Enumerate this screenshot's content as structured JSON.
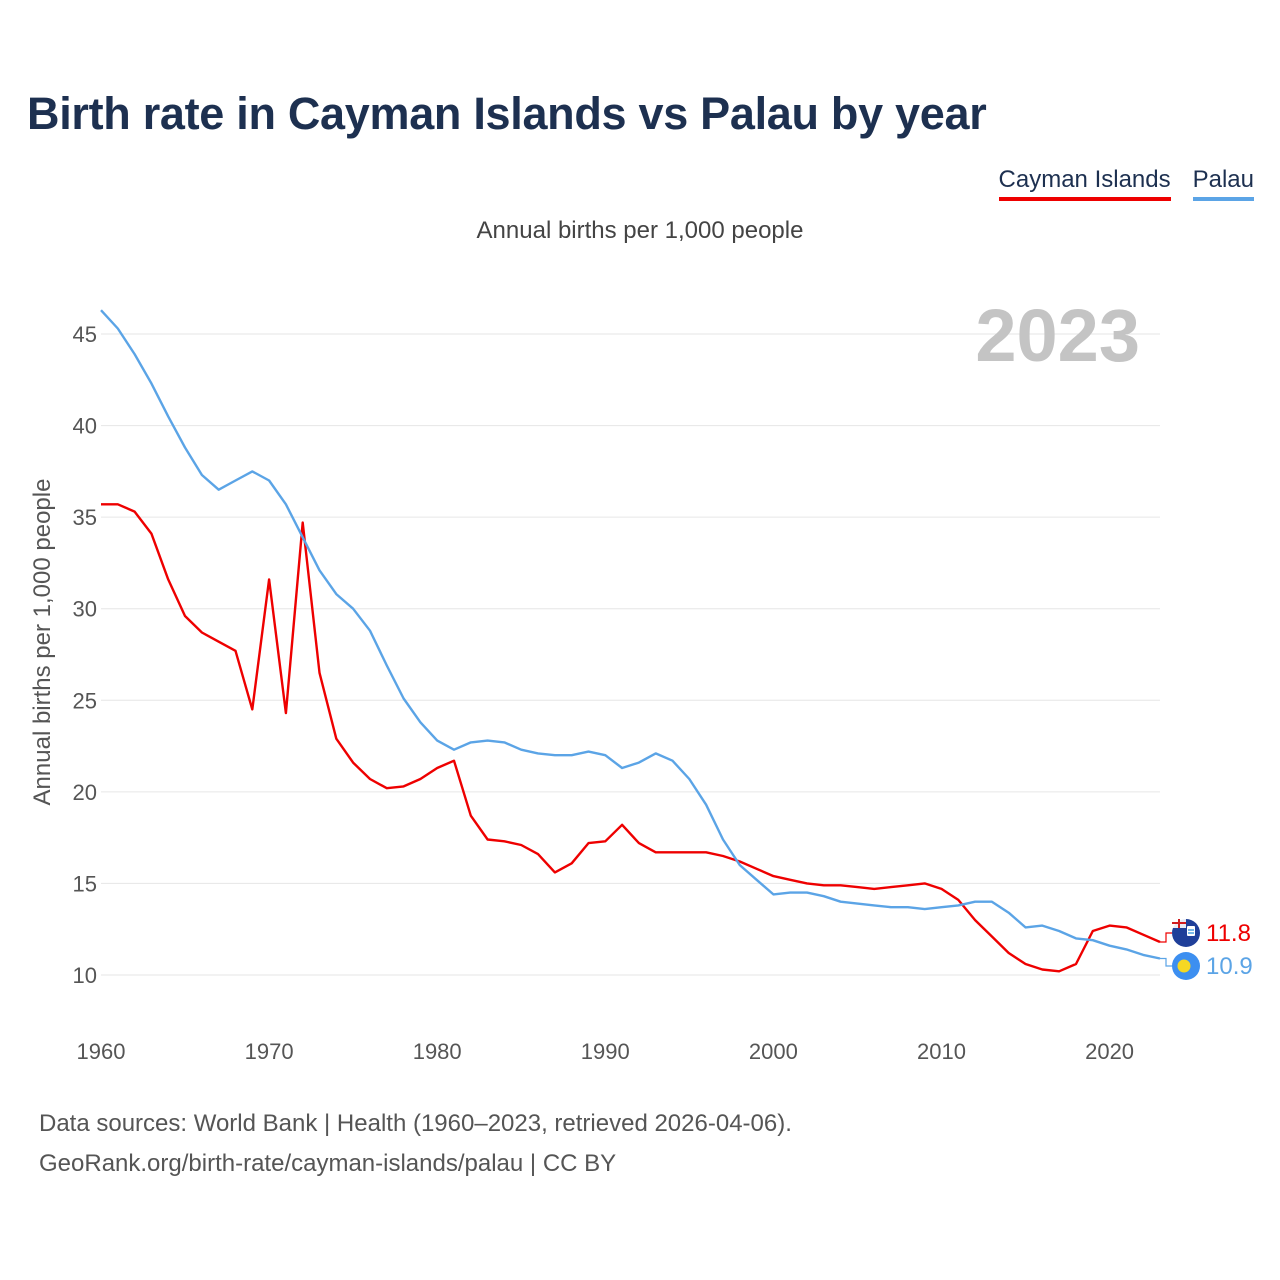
{
  "chart_data": {
    "type": "line",
    "title": "Birth rate in Cayman Islands vs Palau by year",
    "subtitle": "Annual births per 1,000 people",
    "ylabel": "Annual births per 1,000 people",
    "xlabel": "",
    "year_label": "2023",
    "xlim": [
      1960,
      2023
    ],
    "ylim": [
      7.5,
      47.5
    ],
    "x_ticks": [
      1960,
      1970,
      1980,
      1990,
      2000,
      2010,
      2020
    ],
    "y_ticks": [
      10,
      15,
      20,
      25,
      30,
      35,
      40,
      45
    ],
    "x": [
      1960,
      1961,
      1962,
      1963,
      1964,
      1965,
      1966,
      1967,
      1968,
      1969,
      1970,
      1971,
      1972,
      1973,
      1974,
      1975,
      1976,
      1977,
      1978,
      1979,
      1980,
      1981,
      1982,
      1983,
      1984,
      1985,
      1986,
      1987,
      1988,
      1989,
      1990,
      1991,
      1992,
      1993,
      1994,
      1995,
      1996,
      1997,
      1998,
      1999,
      2000,
      2001,
      2002,
      2003,
      2004,
      2005,
      2006,
      2007,
      2008,
      2009,
      2010,
      2011,
      2012,
      2013,
      2014,
      2015,
      2016,
      2017,
      2018,
      2019,
      2020,
      2021,
      2022,
      2023
    ],
    "series": [
      {
        "name": "Cayman Islands",
        "color": "#ee0000",
        "end_label": "11.8",
        "values": [
          35.7,
          35.7,
          35.3,
          34.1,
          31.6,
          29.6,
          28.7,
          28.2,
          27.7,
          24.5,
          31.6,
          24.3,
          34.7,
          26.5,
          22.9,
          21.6,
          20.7,
          20.2,
          20.3,
          20.7,
          21.3,
          21.7,
          18.7,
          17.4,
          17.3,
          17.1,
          16.6,
          15.6,
          16.1,
          17.2,
          17.3,
          18.2,
          17.2,
          16.7,
          16.7,
          16.7,
          16.7,
          16.5,
          16.2,
          15.8,
          15.4,
          15.2,
          15.0,
          14.9,
          14.9,
          14.8,
          14.7,
          14.8,
          14.9,
          15.0,
          14.7,
          14.1,
          13.0,
          12.1,
          11.2,
          10.6,
          10.3,
          10.2,
          10.6,
          12.4,
          12.7,
          12.6,
          12.2,
          11.8
        ]
      },
      {
        "name": "Palau",
        "color": "#5ba4e6",
        "end_label": "10.9",
        "values": [
          46.3,
          45.3,
          43.9,
          42.3,
          40.5,
          38.8,
          37.3,
          36.5,
          37.0,
          37.5,
          37.0,
          35.7,
          33.9,
          32.1,
          30.8,
          30.0,
          28.8,
          26.9,
          25.1,
          23.8,
          22.8,
          22.3,
          22.7,
          22.8,
          22.7,
          22.3,
          22.1,
          22.0,
          22.0,
          22.2,
          22.0,
          21.3,
          21.6,
          22.1,
          21.7,
          20.7,
          19.3,
          17.4,
          16.0,
          15.2,
          14.4,
          14.5,
          14.5,
          14.3,
          14.0,
          13.9,
          13.8,
          13.7,
          13.7,
          13.6,
          13.7,
          13.8,
          14.0,
          14.0,
          13.4,
          12.6,
          12.7,
          12.4,
          12.0,
          11.9,
          11.6,
          11.4,
          11.1,
          10.9
        ]
      }
    ],
    "legend": [
      "Cayman Islands",
      "Palau"
    ],
    "legend_position": "top-right",
    "grid": true
  },
  "footer": {
    "line1": "Data sources: World Bank | Health (1960–2023, retrieved 2026-04-06).",
    "line2": "GeoRank.org/birth-rate/cayman-islands/palau | CC BY"
  }
}
